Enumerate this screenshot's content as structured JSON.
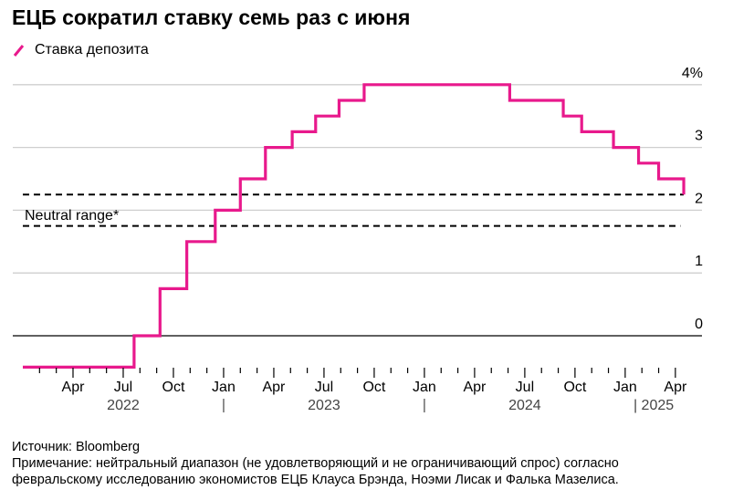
{
  "title": "ЕЦБ сократил ставку семь раз с июня",
  "legend": {
    "label": "Ставка депозита",
    "color": "#e8198c"
  },
  "footer": {
    "source": "Источник: Bloomberg",
    "note_line1": "Примечание: нейтральный диапазон (не удовлетворяющий и не ограничивающий спрос) согласно",
    "note_line2": "февральскому исследованию экономистов ЕЦБ Клауса Брэнда, Ноэми Лисак и Фалька Мазелиса."
  },
  "chart_data": {
    "type": "line",
    "step": true,
    "series": [
      {
        "name": "Ставка депозита",
        "color": "#e8198c",
        "x_unit": "months since Jan 2022",
        "points": [
          [
            0,
            -0.5
          ],
          [
            6.65,
            -0.5
          ],
          [
            6.65,
            0
          ],
          [
            8.2,
            0
          ],
          [
            8.2,
            0.75
          ],
          [
            9.8,
            0.75
          ],
          [
            9.8,
            1.5
          ],
          [
            11.5,
            1.5
          ],
          [
            11.5,
            2.0
          ],
          [
            13,
            2.0
          ],
          [
            13,
            2.5
          ],
          [
            14.5,
            2.5
          ],
          [
            14.5,
            3.0
          ],
          [
            16.1,
            3.0
          ],
          [
            16.1,
            3.25
          ],
          [
            17.5,
            3.25
          ],
          [
            17.5,
            3.5
          ],
          [
            18.9,
            3.5
          ],
          [
            18.9,
            3.75
          ],
          [
            20.4,
            3.75
          ],
          [
            20.4,
            4.0
          ],
          [
            29.1,
            4.0
          ],
          [
            29.1,
            3.75
          ],
          [
            32.3,
            3.75
          ],
          [
            32.3,
            3.5
          ],
          [
            33.4,
            3.5
          ],
          [
            33.4,
            3.25
          ],
          [
            35.3,
            3.25
          ],
          [
            35.3,
            3.0
          ],
          [
            36.8,
            3.0
          ],
          [
            36.8,
            2.75
          ],
          [
            38.0,
            2.75
          ],
          [
            38.0,
            2.5
          ],
          [
            39.5,
            2.5
          ],
          [
            39.5,
            2.25
          ]
        ]
      }
    ],
    "neutral_range": {
      "label": "Neutral range*",
      "low": 1.75,
      "high": 2.25,
      "x_end_high": 39.5,
      "x_end_low": 39.3
    },
    "ylim": [
      -0.5,
      4
    ],
    "yticks": [
      0,
      1,
      2,
      3,
      4
    ],
    "ytick_labels": [
      "0",
      "1",
      "2",
      "3",
      "4%"
    ],
    "xlim": [
      0,
      39.5
    ],
    "xticks": [
      {
        "m": 3,
        "label": "Apr"
      },
      {
        "m": 6,
        "label": "Jul"
      },
      {
        "m": 9,
        "label": "Oct"
      },
      {
        "m": 12,
        "label": "Jan"
      },
      {
        "m": 15,
        "label": "Apr"
      },
      {
        "m": 18,
        "label": "Jul"
      },
      {
        "m": 21,
        "label": "Oct"
      },
      {
        "m": 24,
        "label": "Jan"
      },
      {
        "m": 27,
        "label": "Apr"
      },
      {
        "m": 30,
        "label": "Jul"
      },
      {
        "m": 33,
        "label": "Oct"
      },
      {
        "m": 36,
        "label": "Jan"
      },
      {
        "m": 39,
        "label": "Apr"
      }
    ],
    "years": [
      {
        "m": 6,
        "label": "2022"
      },
      {
        "m": 18,
        "label": "2023"
      },
      {
        "m": 30,
        "label": "2024"
      },
      {
        "m": 37.7,
        "label": "| 2025"
      }
    ],
    "year_separators": [
      12,
      24
    ],
    "grid": true
  }
}
